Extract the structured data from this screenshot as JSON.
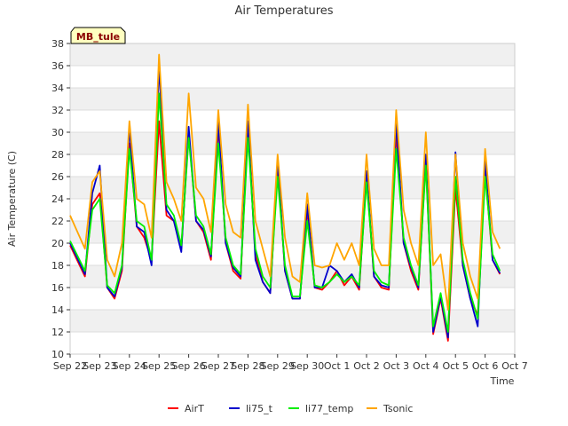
{
  "chart_data": {
    "type": "line",
    "title": "Air Temperatures",
    "xlabel": "Time",
    "ylabel": "Air Temperature (C)",
    "site_label": "MB_tule",
    "xlim": [
      "2023-09-22",
      "2023-10-07"
    ],
    "x_ticks": [
      "Sep 22",
      "Sep 23",
      "Sep 24",
      "Sep 25",
      "Sep 26",
      "Sep 27",
      "Sep 28",
      "Sep 29",
      "Sep 30",
      "Oct 1",
      "Oct 2",
      "Oct 3",
      "Oct 4",
      "Oct 5",
      "Oct 6",
      "Oct 7"
    ],
    "ylim": [
      10,
      38
    ],
    "y_ticks": [
      10,
      12,
      14,
      16,
      18,
      20,
      22,
      24,
      26,
      28,
      30,
      32,
      34,
      36,
      38
    ],
    "grid": true,
    "banded_background": true,
    "legend_position": "bottom",
    "series": [
      {
        "name": "AirT",
        "color": "#ff0000",
        "x": [
          "2023-09-22 00:00",
          "2023-09-22 12:00",
          "2023-09-22 18:00",
          "2023-09-23 00:00",
          "2023-09-23 06:00",
          "2023-09-23 12:00",
          "2023-09-23 18:00",
          "2023-09-24 00:00",
          "2023-09-24 06:00",
          "2023-09-24 12:00",
          "2023-09-24 18:00",
          "2023-09-25 00:00",
          "2023-09-25 06:00",
          "2023-09-25 12:00",
          "2023-09-25 18:00",
          "2023-09-26 00:00",
          "2023-09-26 06:00",
          "2023-09-26 12:00",
          "2023-09-26 18:00",
          "2023-09-27 00:00",
          "2023-09-27 06:00",
          "2023-09-27 12:00",
          "2023-09-27 18:00",
          "2023-09-28 00:00",
          "2023-09-28 06:00",
          "2023-09-28 12:00",
          "2023-09-28 18:00",
          "2023-09-29 00:00",
          "2023-09-29 06:00",
          "2023-09-29 12:00",
          "2023-09-29 18:00",
          "2023-09-30 00:00",
          "2023-09-30 06:00",
          "2023-09-30 12:00",
          "2023-09-30 18:00",
          "2023-10-01 00:00",
          "2023-10-01 06:00",
          "2023-10-01 12:00",
          "2023-10-01 18:00",
          "2023-10-02 00:00",
          "2023-10-02 06:00",
          "2023-10-02 12:00",
          "2023-10-02 18:00",
          "2023-10-03 00:00",
          "2023-10-03 06:00",
          "2023-10-03 12:00",
          "2023-10-03 18:00",
          "2023-10-04 00:00",
          "2023-10-04 06:00",
          "2023-10-04 12:00",
          "2023-10-04 18:00",
          "2023-10-05 00:00",
          "2023-10-05 06:00",
          "2023-10-05 12:00",
          "2023-10-05 18:00",
          "2023-10-06 00:00",
          "2023-10-06 06:00",
          "2023-10-06 12:00"
        ],
        "y": [
          19.8,
          17,
          23.5,
          24.5,
          16,
          15,
          17.5,
          29,
          21.5,
          20.5,
          18.5,
          31,
          22.5,
          22,
          19.5,
          30,
          22,
          21,
          18.5,
          30.5,
          20,
          17.5,
          16.8,
          30.5,
          19,
          16.5,
          15.5,
          27,
          17.5,
          15,
          15,
          23,
          16,
          15.8,
          16.5,
          17.5,
          16.2,
          17,
          15.8,
          26,
          17,
          16,
          15.8,
          30,
          20,
          17.5,
          15.8,
          27.5,
          11.8,
          15,
          11.2,
          25,
          18,
          15,
          13.5,
          26.5,
          18.5,
          17.2
        ]
      },
      {
        "name": "li75_t",
        "color": "#0000cc",
        "x": [
          "2023-09-22 00:00",
          "2023-09-22 12:00",
          "2023-09-22 18:00",
          "2023-09-23 00:00",
          "2023-09-23 06:00",
          "2023-09-23 12:00",
          "2023-09-23 18:00",
          "2023-09-24 00:00",
          "2023-09-24 06:00",
          "2023-09-24 12:00",
          "2023-09-24 18:00",
          "2023-09-25 00:00",
          "2023-09-25 06:00",
          "2023-09-25 12:00",
          "2023-09-25 18:00",
          "2023-09-26 00:00",
          "2023-09-26 06:00",
          "2023-09-26 12:00",
          "2023-09-26 18:00",
          "2023-09-27 00:00",
          "2023-09-27 06:00",
          "2023-09-27 12:00",
          "2023-09-27 18:00",
          "2023-09-28 00:00",
          "2023-09-28 06:00",
          "2023-09-28 12:00",
          "2023-09-28 18:00",
          "2023-09-29 00:00",
          "2023-09-29 06:00",
          "2023-09-29 12:00",
          "2023-09-29 18:00",
          "2023-09-30 00:00",
          "2023-09-30 06:00",
          "2023-09-30 12:00",
          "2023-09-30 18:00",
          "2023-10-01 00:00",
          "2023-10-01 06:00",
          "2023-10-01 12:00",
          "2023-10-01 18:00",
          "2023-10-02 00:00",
          "2023-10-02 06:00",
          "2023-10-02 12:00",
          "2023-10-02 18:00",
          "2023-10-03 00:00",
          "2023-10-03 06:00",
          "2023-10-03 12:00",
          "2023-10-03 18:00",
          "2023-10-04 00:00",
          "2023-10-04 06:00",
          "2023-10-04 12:00",
          "2023-10-04 18:00",
          "2023-10-05 00:00",
          "2023-10-05 06:00",
          "2023-10-05 12:00",
          "2023-10-05 18:00",
          "2023-10-06 00:00",
          "2023-10-06 06:00",
          "2023-10-06 12:00"
        ],
        "y": [
          20,
          17.2,
          24.5,
          27,
          16,
          15.2,
          17.8,
          30.5,
          21.5,
          21,
          18,
          36,
          23,
          22,
          19.2,
          30.5,
          22,
          21.2,
          18.8,
          31,
          20,
          17.8,
          17,
          31,
          18.5,
          16.5,
          15.5,
          27.5,
          17.5,
          15,
          15,
          23.5,
          16,
          16,
          18,
          17.5,
          16.5,
          17.2,
          16,
          26.5,
          17,
          16.2,
          16,
          31,
          20,
          17.8,
          16,
          28,
          12,
          15.2,
          11.5,
          28.2,
          18,
          15,
          12.5,
          27.5,
          18.5,
          17.3
        ]
      },
      {
        "name": "li77_temp",
        "color": "#00ee00",
        "x": [
          "2023-09-22 00:00",
          "2023-09-22 12:00",
          "2023-09-22 18:00",
          "2023-09-23 00:00",
          "2023-09-23 06:00",
          "2023-09-23 12:00",
          "2023-09-23 18:00",
          "2023-09-24 00:00",
          "2023-09-24 06:00",
          "2023-09-24 12:00",
          "2023-09-24 18:00",
          "2023-09-25 00:00",
          "2023-09-25 06:00",
          "2023-09-25 12:00",
          "2023-09-25 18:00",
          "2023-09-26 00:00",
          "2023-09-26 06:00",
          "2023-09-26 12:00",
          "2023-09-26 18:00",
          "2023-09-27 00:00",
          "2023-09-27 06:00",
          "2023-09-27 12:00",
          "2023-09-27 18:00",
          "2023-09-28 00:00",
          "2023-09-28 06:00",
          "2023-09-28 12:00",
          "2023-09-28 18:00",
          "2023-09-29 00:00",
          "2023-09-29 06:00",
          "2023-09-29 12:00",
          "2023-09-29 18:00",
          "2023-09-30 00:00",
          "2023-09-30 06:00",
          "2023-09-30 12:00",
          "2023-09-30 18:00",
          "2023-10-01 00:00",
          "2023-10-01 06:00",
          "2023-10-01 12:00",
          "2023-10-01 18:00",
          "2023-10-02 00:00",
          "2023-10-02 06:00",
          "2023-10-02 12:00",
          "2023-10-02 18:00",
          "2023-10-03 00:00",
          "2023-10-03 06:00",
          "2023-10-03 12:00",
          "2023-10-03 18:00",
          "2023-10-04 00:00",
          "2023-10-04 06:00",
          "2023-10-04 12:00",
          "2023-10-04 18:00",
          "2023-10-05 00:00",
          "2023-10-05 06:00",
          "2023-10-05 12:00",
          "2023-10-05 18:00",
          "2023-10-06 00:00",
          "2023-10-06 06:00",
          "2023-10-06 12:00"
        ],
        "y": [
          20.2,
          17.5,
          23,
          24,
          16.2,
          15.5,
          18,
          28.5,
          22,
          21.5,
          18.5,
          33.5,
          23.5,
          22.5,
          19.8,
          29.5,
          22.5,
          21.5,
          19,
          29,
          20.5,
          18,
          17.2,
          29.5,
          19.5,
          17,
          16,
          26,
          18,
          15.2,
          15.2,
          22,
          16.2,
          16,
          16.5,
          17.2,
          16.5,
          17,
          16.2,
          25.5,
          17.5,
          16.5,
          16.2,
          28.5,
          20.5,
          18,
          16.2,
          27,
          12.5,
          15.5,
          12,
          26,
          18.5,
          15.5,
          13.2,
          26,
          19,
          17.5
        ]
      },
      {
        "name": "Tsonic",
        "color": "#ffa500",
        "x": [
          "2023-09-22 00:00",
          "2023-09-22 12:00",
          "2023-09-22 18:00",
          "2023-09-23 00:00",
          "2023-09-23 06:00",
          "2023-09-23 12:00",
          "2023-09-23 18:00",
          "2023-09-24 00:00",
          "2023-09-24 06:00",
          "2023-09-24 12:00",
          "2023-09-24 18:00",
          "2023-09-25 00:00",
          "2023-09-25 06:00",
          "2023-09-25 12:00",
          "2023-09-25 18:00",
          "2023-09-26 00:00",
          "2023-09-26 06:00",
          "2023-09-26 12:00",
          "2023-09-26 18:00",
          "2023-09-27 00:00",
          "2023-09-27 06:00",
          "2023-09-27 12:00",
          "2023-09-27 18:00",
          "2023-09-28 00:00",
          "2023-09-28 06:00",
          "2023-09-28 12:00",
          "2023-09-28 18:00",
          "2023-09-29 00:00",
          "2023-09-29 06:00",
          "2023-09-29 12:00",
          "2023-09-29 18:00",
          "2023-09-30 00:00",
          "2023-09-30 06:00",
          "2023-09-30 12:00",
          "2023-09-30 18:00",
          "2023-10-01 00:00",
          "2023-10-01 06:00",
          "2023-10-01 12:00",
          "2023-10-01 18:00",
          "2023-10-02 00:00",
          "2023-10-02 06:00",
          "2023-10-02 12:00",
          "2023-10-02 18:00",
          "2023-10-03 00:00",
          "2023-10-03 06:00",
          "2023-10-03 12:00",
          "2023-10-03 18:00",
          "2023-10-04 00:00",
          "2023-10-04 06:00",
          "2023-10-04 12:00",
          "2023-10-04 18:00",
          "2023-10-05 00:00",
          "2023-10-05 06:00",
          "2023-10-05 12:00",
          "2023-10-05 18:00",
          "2023-10-06 00:00",
          "2023-10-06 06:00",
          "2023-10-06 12:00"
        ],
        "y": [
          22.5,
          19.5,
          25.5,
          26.5,
          18.5,
          17,
          20,
          31,
          24,
          23.5,
          20.5,
          37,
          25.5,
          24,
          22,
          33.5,
          25,
          24,
          21,
          32,
          23.5,
          21,
          20.5,
          32.5,
          22,
          19.5,
          17,
          28,
          20.5,
          17,
          16.5,
          24.5,
          18,
          17.8,
          18,
          20,
          18.5,
          20,
          18,
          28,
          19.5,
          18,
          18,
          32,
          23,
          20,
          18,
          30,
          18,
          19,
          14,
          28,
          20,
          17,
          15,
          28.5,
          21,
          19.5
        ]
      }
    ]
  }
}
